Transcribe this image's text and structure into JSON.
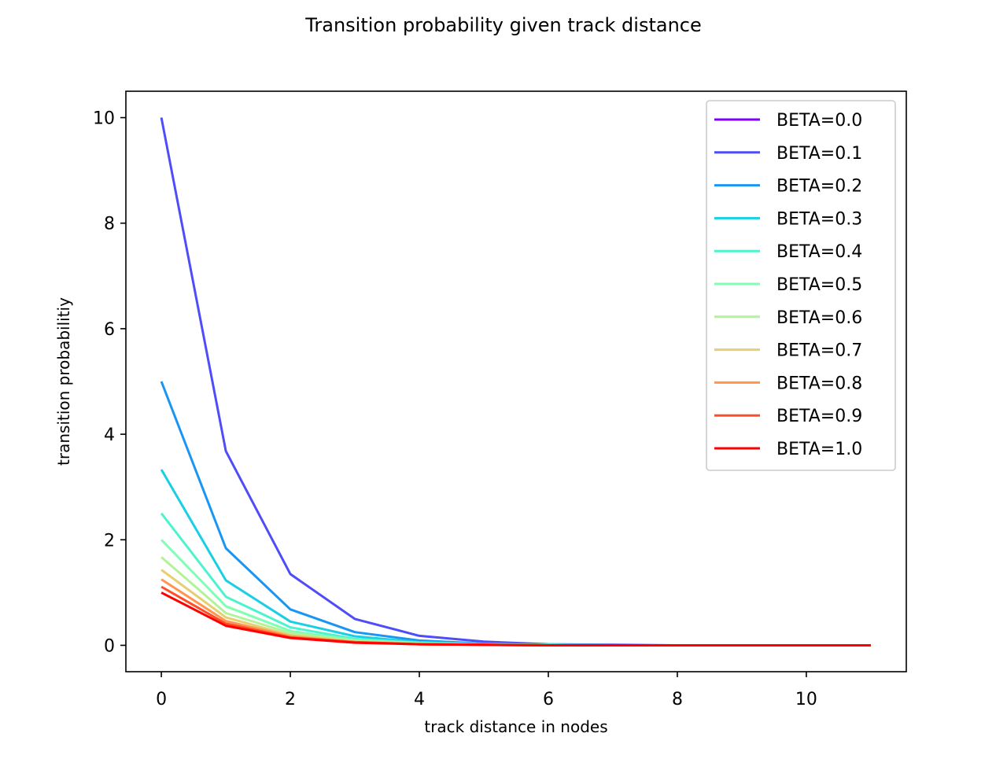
{
  "chart_data": {
    "type": "line",
    "title": "Transition probability given track distance",
    "xlabel": "track distance in nodes",
    "ylabel": "transition probabilitiy",
    "xlim": [
      -0.55,
      11.55
    ],
    "ylim": [
      -0.5,
      10.5
    ],
    "xticks": [
      "0",
      "2",
      "4",
      "6",
      "8",
      "10"
    ],
    "yticks": [
      "0",
      "2",
      "4",
      "6",
      "8",
      "10"
    ],
    "grid": false,
    "legend_position": "upper right",
    "x": [
      0,
      1,
      2,
      3,
      4,
      5,
      6,
      7,
      8,
      9,
      10,
      11
    ],
    "series": [
      {
        "name": "BETA=0.0",
        "color": "#8000ff",
        "values": [
          null,
          null,
          null,
          null,
          null,
          null,
          null,
          null,
          null,
          null,
          null,
          null
        ]
      },
      {
        "name": "BETA=0.1",
        "color": "#4f4df8",
        "values": [
          10.0,
          3.68,
          1.35,
          0.5,
          0.18,
          0.07,
          0.02,
          0.01,
          0.0,
          0.0,
          0.0,
          0.0
        ]
      },
      {
        "name": "BETA=0.2",
        "color": "#1996f3",
        "values": [
          5.0,
          1.84,
          0.68,
          0.25,
          0.09,
          0.03,
          0.01,
          0.0,
          0.0,
          0.0,
          0.0,
          0.0
        ]
      },
      {
        "name": "BETA=0.3",
        "color": "#1acfe3",
        "values": [
          3.33,
          1.23,
          0.45,
          0.17,
          0.06,
          0.02,
          0.01,
          0.0,
          0.0,
          0.0,
          0.0,
          0.0
        ]
      },
      {
        "name": "BETA=0.4",
        "color": "#4df3ce",
        "values": [
          2.5,
          0.92,
          0.34,
          0.12,
          0.05,
          0.02,
          0.01,
          0.0,
          0.0,
          0.0,
          0.0,
          0.0
        ]
      },
      {
        "name": "BETA=0.5",
        "color": "#80ffb4",
        "values": [
          2.0,
          0.74,
          0.27,
          0.1,
          0.04,
          0.01,
          0.0,
          0.0,
          0.0,
          0.0,
          0.0,
          0.0
        ]
      },
      {
        "name": "BETA=0.6",
        "color": "#b2f396",
        "values": [
          1.67,
          0.61,
          0.23,
          0.08,
          0.03,
          0.01,
          0.0,
          0.0,
          0.0,
          0.0,
          0.0,
          0.0
        ]
      },
      {
        "name": "BETA=0.7",
        "color": "#e6cf73",
        "values": [
          1.43,
          0.53,
          0.19,
          0.07,
          0.03,
          0.01,
          0.0,
          0.0,
          0.0,
          0.0,
          0.0,
          0.0
        ]
      },
      {
        "name": "BETA=0.8",
        "color": "#ff964f",
        "values": [
          1.25,
          0.46,
          0.17,
          0.06,
          0.02,
          0.01,
          0.0,
          0.0,
          0.0,
          0.0,
          0.0,
          0.0
        ]
      },
      {
        "name": "BETA=0.9",
        "color": "#ff4d27",
        "values": [
          1.11,
          0.41,
          0.15,
          0.06,
          0.02,
          0.01,
          0.0,
          0.0,
          0.0,
          0.0,
          0.0,
          0.0
        ]
      },
      {
        "name": "BETA=1.0",
        "color": "#ff0000",
        "values": [
          1.0,
          0.37,
          0.14,
          0.05,
          0.02,
          0.01,
          0.0,
          0.0,
          0.0,
          0.0,
          0.0,
          0.0
        ]
      }
    ]
  }
}
